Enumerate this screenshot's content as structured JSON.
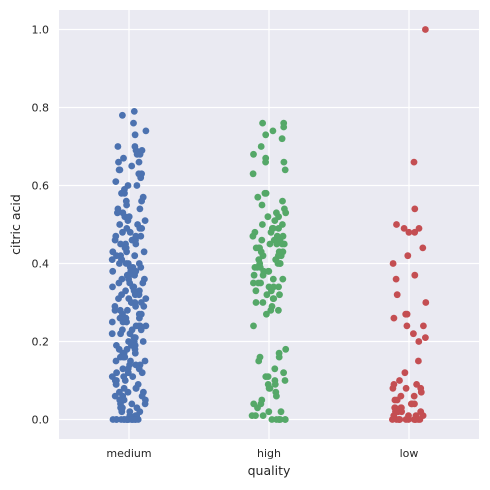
{
  "chart_data": {
    "type": "scatter",
    "subtype": "strip",
    "title": "",
    "xlabel": "quality",
    "ylabel": "citric acid",
    "categories": [
      "medium",
      "high",
      "low"
    ],
    "ylim": [
      -0.05,
      1.05
    ],
    "y_ticks": [
      "0.0",
      "0.2",
      "0.4",
      "0.6",
      "0.8",
      "1.0"
    ],
    "y_tick_values": [
      0.0,
      0.2,
      0.4,
      0.6,
      0.8,
      1.0
    ],
    "grid": true,
    "legend": "none",
    "background": "#eaeaf2",
    "colors": {
      "medium": "#4c72b0",
      "high": "#55a868",
      "low": "#c44e52"
    },
    "series": [
      {
        "category": "medium",
        "values": [
          0.79,
          0.78,
          0.76,
          0.74,
          0.73,
          0.7,
          0.7,
          0.69,
          0.69,
          0.68,
          0.68,
          0.67,
          0.66,
          0.66,
          0.65,
          0.64,
          0.64,
          0.63,
          0.63,
          0.62,
          0.61,
          0.6,
          0.6,
          0.59,
          0.58,
          0.58,
          0.57,
          0.56,
          0.56,
          0.55,
          0.54,
          0.54,
          0.53,
          0.53,
          0.52,
          0.52,
          0.51,
          0.51,
          0.5,
          0.5,
          0.49,
          0.49,
          0.49,
          0.48,
          0.48,
          0.47,
          0.47,
          0.47,
          0.46,
          0.46,
          0.46,
          0.45,
          0.45,
          0.45,
          0.44,
          0.44,
          0.44,
          0.43,
          0.43,
          0.43,
          0.42,
          0.42,
          0.42,
          0.41,
          0.41,
          0.41,
          0.4,
          0.4,
          0.4,
          0.4,
          0.39,
          0.39,
          0.39,
          0.38,
          0.38,
          0.38,
          0.37,
          0.37,
          0.37,
          0.36,
          0.36,
          0.36,
          0.35,
          0.35,
          0.35,
          0.34,
          0.34,
          0.34,
          0.33,
          0.33,
          0.33,
          0.32,
          0.32,
          0.32,
          0.31,
          0.31,
          0.31,
          0.3,
          0.3,
          0.3,
          0.3,
          0.29,
          0.29,
          0.29,
          0.28,
          0.28,
          0.28,
          0.27,
          0.27,
          0.27,
          0.26,
          0.26,
          0.26,
          0.25,
          0.25,
          0.25,
          0.24,
          0.24,
          0.24,
          0.24,
          0.23,
          0.23,
          0.23,
          0.22,
          0.22,
          0.22,
          0.21,
          0.21,
          0.21,
          0.2,
          0.2,
          0.2,
          0.19,
          0.19,
          0.19,
          0.18,
          0.18,
          0.18,
          0.17,
          0.17,
          0.17,
          0.16,
          0.16,
          0.16,
          0.15,
          0.15,
          0.15,
          0.14,
          0.14,
          0.14,
          0.13,
          0.13,
          0.13,
          0.12,
          0.12,
          0.12,
          0.11,
          0.11,
          0.11,
          0.1,
          0.1,
          0.1,
          0.09,
          0.09,
          0.09,
          0.08,
          0.08,
          0.08,
          0.07,
          0.07,
          0.07,
          0.06,
          0.06,
          0.06,
          0.05,
          0.05,
          0.05,
          0.04,
          0.04,
          0.04,
          0.03,
          0.03,
          0.03,
          0.02,
          0.02,
          0.02,
          0.01,
          0.01,
          0.01,
          0.0,
          0.0,
          0.0,
          0.0,
          0.0,
          0.0,
          0.0,
          0.0,
          0.0,
          0.0,
          0.0,
          0.0,
          0.0,
          0.0,
          0.0,
          0.0
        ]
      },
      {
        "category": "high",
        "values": [
          0.76,
          0.76,
          0.75,
          0.74,
          0.73,
          0.72,
          0.7,
          0.68,
          0.67,
          0.66,
          0.66,
          0.64,
          0.63,
          0.58,
          0.58,
          0.57,
          0.56,
          0.55,
          0.54,
          0.53,
          0.53,
          0.52,
          0.52,
          0.51,
          0.5,
          0.5,
          0.49,
          0.49,
          0.49,
          0.48,
          0.48,
          0.47,
          0.47,
          0.47,
          0.46,
          0.46,
          0.46,
          0.45,
          0.45,
          0.45,
          0.45,
          0.44,
          0.44,
          0.44,
          0.43,
          0.43,
          0.43,
          0.42,
          0.42,
          0.42,
          0.41,
          0.41,
          0.41,
          0.4,
          0.4,
          0.4,
          0.4,
          0.39,
          0.39,
          0.39,
          0.38,
          0.38,
          0.38,
          0.37,
          0.37,
          0.36,
          0.36,
          0.35,
          0.35,
          0.35,
          0.34,
          0.34,
          0.34,
          0.33,
          0.33,
          0.32,
          0.32,
          0.31,
          0.31,
          0.3,
          0.3,
          0.29,
          0.28,
          0.28,
          0.27,
          0.24,
          0.18,
          0.17,
          0.16,
          0.16,
          0.15,
          0.13,
          0.12,
          0.11,
          0.11,
          0.1,
          0.1,
          0.09,
          0.09,
          0.08,
          0.08,
          0.07,
          0.06,
          0.05,
          0.04,
          0.04,
          0.03,
          0.02,
          0.02,
          0.01,
          0.01,
          0.01,
          0.0,
          0.0,
          0.0,
          0.0,
          0.0,
          0.0,
          0.0
        ]
      },
      {
        "category": "low",
        "values": [
          1.0,
          0.66,
          0.54,
          0.5,
          0.49,
          0.49,
          0.48,
          0.48,
          0.44,
          0.42,
          0.4,
          0.37,
          0.36,
          0.32,
          0.3,
          0.27,
          0.27,
          0.26,
          0.24,
          0.24,
          0.22,
          0.21,
          0.2,
          0.15,
          0.12,
          0.1,
          0.09,
          0.09,
          0.08,
          0.08,
          0.08,
          0.07,
          0.06,
          0.06,
          0.05,
          0.05,
          0.04,
          0.04,
          0.04,
          0.03,
          0.03,
          0.03,
          0.03,
          0.02,
          0.02,
          0.02,
          0.02,
          0.02,
          0.01,
          0.01,
          0.01,
          0.01,
          0.0,
          0.0,
          0.0,
          0.0,
          0.0,
          0.0,
          0.0,
          0.0,
          0.0,
          0.0,
          0.0,
          0.0
        ]
      }
    ]
  }
}
